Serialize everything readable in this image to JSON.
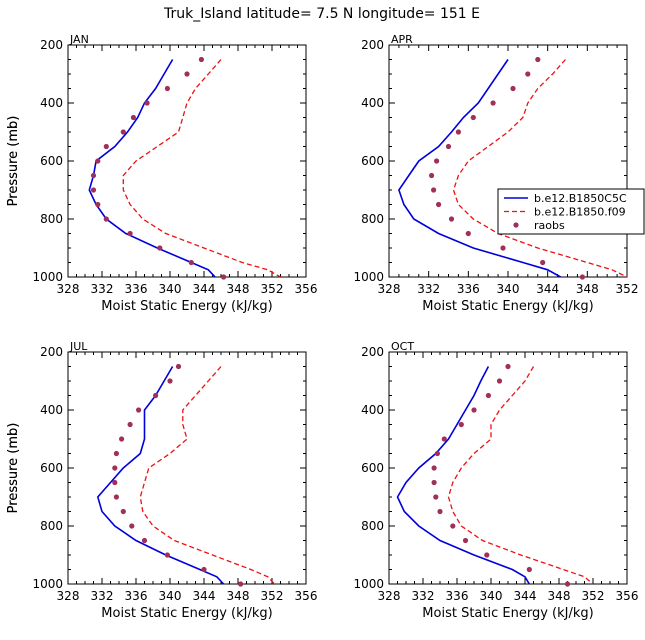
{
  "page": {
    "title": "Truk_Island   latitude= 7.5 N longitude= 151 E"
  },
  "colors": {
    "model_c5": "#0000dd",
    "model_f09": "#ee1111",
    "raobs": "#a0305a",
    "axis": "#000000"
  },
  "legend": {
    "items": [
      {
        "label": "b.e12.B1850C5C"
      },
      {
        "label": "b.e12.B1850.f09"
      },
      {
        "label": "raobs"
      }
    ]
  },
  "chart_data": [
    {
      "type": "line",
      "panel": "JAN",
      "xlabel": "Moist Static Energy (kJ/kg)",
      "ylabel": "Pressure (mb)",
      "xlim": [
        328,
        356
      ],
      "ylim": [
        200,
        1000
      ],
      "y_inverted": true,
      "xticks": [
        "328",
        "332",
        "336",
        "340",
        "344",
        "348",
        "352",
        "356"
      ],
      "yticks": [
        "200",
        "400",
        "600",
        "800",
        "1000"
      ],
      "pressure": [
        250,
        300,
        350,
        400,
        450,
        500,
        550,
        600,
        650,
        700,
        750,
        800,
        850,
        900,
        950,
        975,
        1000
      ],
      "series": [
        {
          "name": "b.e12.B1850C5C",
          "style": "solid",
          "values": [
            340.3,
            339.3,
            338.3,
            337.0,
            336.2,
            335.0,
            333.5,
            331.3,
            331.0,
            330.5,
            331.3,
            332.5,
            334.8,
            338.5,
            342.5,
            344.5,
            345.3
          ]
        },
        {
          "name": "b.e12.B1850.f09",
          "style": "dashed",
          "values": [
            346.0,
            344.5,
            343.0,
            342.0,
            341.5,
            341.0,
            338.5,
            336.0,
            334.5,
            334.5,
            335.3,
            336.8,
            339.5,
            344.0,
            348.5,
            351.5,
            353.0
          ]
        }
      ],
      "points": {
        "name": "raobs",
        "pressure": [
          250,
          300,
          350,
          400,
          450,
          500,
          550,
          600,
          650,
          700,
          750,
          800,
          850,
          900,
          950,
          1000
        ],
        "values": [
          343.7,
          342.0,
          339.7,
          337.3,
          335.7,
          334.5,
          332.5,
          331.5,
          331.0,
          331.0,
          331.5,
          332.5,
          335.3,
          338.8,
          342.5,
          346.3
        ]
      }
    },
    {
      "type": "line",
      "panel": "APR",
      "xlabel": "Moist Static Energy (kJ/kg)",
      "ylabel": "Pressure (mb)",
      "xlim": [
        328,
        352
      ],
      "ylim": [
        200,
        1000
      ],
      "y_inverted": true,
      "xticks": [
        "328",
        "332",
        "336",
        "340",
        "344",
        "348",
        "352"
      ],
      "yticks": [
        "200",
        "400",
        "600",
        "800",
        "1000"
      ],
      "pressure": [
        250,
        300,
        350,
        400,
        450,
        500,
        550,
        600,
        650,
        700,
        750,
        800,
        850,
        900,
        950,
        975,
        1000
      ],
      "series": [
        {
          "name": "b.e12.B1850C5C",
          "style": "solid",
          "values": [
            340.0,
            339.0,
            338.0,
            337.0,
            335.5,
            334.3,
            333.0,
            331.0,
            330.0,
            329.0,
            329.5,
            330.5,
            333.0,
            336.5,
            341.5,
            344.0,
            345.3
          ]
        },
        {
          "name": "b.e12.B1850.f09",
          "style": "dashed",
          "values": [
            345.8,
            344.5,
            343.0,
            342.0,
            341.5,
            340.0,
            338.0,
            336.0,
            335.0,
            334.5,
            335.0,
            336.5,
            339.0,
            343.0,
            348.0,
            350.5,
            352.0
          ]
        }
      ],
      "points": {
        "name": "raobs",
        "pressure": [
          250,
          300,
          350,
          400,
          450,
          500,
          550,
          600,
          650,
          700,
          750,
          800,
          850,
          900,
          950,
          1000
        ],
        "values": [
          343.0,
          342.0,
          340.5,
          338.5,
          336.5,
          335.0,
          334.0,
          332.8,
          332.3,
          332.5,
          333.0,
          334.3,
          336.0,
          339.5,
          343.5,
          347.5
        ]
      }
    },
    {
      "type": "line",
      "panel": "JUL",
      "xlabel": "Moist Static Energy (kJ/kg)",
      "ylabel": "Pressure (mb)",
      "xlim": [
        328,
        356
      ],
      "ylim": [
        200,
        1000
      ],
      "y_inverted": true,
      "xticks": [
        "328",
        "332",
        "336",
        "340",
        "344",
        "348",
        "352",
        "356"
      ],
      "yticks": [
        "200",
        "400",
        "600",
        "800",
        "1000"
      ],
      "pressure": [
        250,
        300,
        350,
        400,
        450,
        500,
        550,
        600,
        650,
        700,
        750,
        800,
        850,
        900,
        950,
        975,
        1000
      ],
      "series": [
        {
          "name": "b.e12.B1850C5C",
          "style": "solid",
          "values": [
            340.3,
            339.3,
            338.3,
            337.0,
            337.0,
            337.0,
            336.5,
            334.5,
            333.0,
            331.5,
            332.0,
            333.5,
            336.0,
            339.5,
            343.5,
            345.5,
            346.3
          ]
        },
        {
          "name": "b.e12.B1850.f09",
          "style": "dashed",
          "values": [
            346.0,
            344.5,
            343.0,
            341.5,
            341.5,
            342.0,
            340.0,
            337.5,
            337.0,
            336.5,
            336.8,
            338.0,
            340.5,
            345.0,
            349.5,
            351.5,
            352.3
          ]
        }
      ],
      "points": {
        "name": "raobs",
        "pressure": [
          250,
          300,
          350,
          400,
          450,
          500,
          550,
          600,
          650,
          700,
          750,
          800,
          850,
          900,
          950,
          1000
        ],
        "values": [
          341.0,
          340.0,
          338.3,
          336.3,
          335.3,
          334.3,
          333.7,
          333.5,
          333.5,
          333.7,
          334.5,
          335.5,
          337.0,
          339.7,
          344.0,
          348.3
        ]
      }
    },
    {
      "type": "line",
      "panel": "OCT",
      "xlabel": "Moist Static Energy (kJ/kg)",
      "ylabel": "Pressure (mb)",
      "xlim": [
        328,
        356
      ],
      "ylim": [
        200,
        1000
      ],
      "y_inverted": true,
      "xticks": [
        "328",
        "332",
        "336",
        "340",
        "344",
        "348",
        "352",
        "356"
      ],
      "yticks": [
        "200",
        "400",
        "600",
        "800",
        "1000"
      ],
      "pressure": [
        250,
        300,
        350,
        400,
        450,
        500,
        550,
        600,
        650,
        700,
        750,
        800,
        850,
        900,
        950,
        975,
        1000
      ],
      "series": [
        {
          "name": "b.e12.B1850C5C",
          "style": "solid",
          "values": [
            339.7,
            338.8,
            338.0,
            337.0,
            336.0,
            335.0,
            333.5,
            331.5,
            330.0,
            329.0,
            329.8,
            331.5,
            334.0,
            338.0,
            342.5,
            344.0,
            344.5
          ]
        },
        {
          "name": "b.e12.B1850.f09",
          "style": "dashed",
          "values": [
            345.0,
            344.0,
            342.5,
            341.0,
            340.0,
            340.0,
            338.0,
            336.5,
            335.5,
            335.0,
            335.5,
            336.5,
            339.0,
            343.5,
            348.5,
            351.0,
            352.0
          ]
        }
      ],
      "points": {
        "name": "raobs",
        "pressure": [
          250,
          300,
          350,
          400,
          450,
          500,
          550,
          600,
          650,
          700,
          750,
          800,
          850,
          900,
          950,
          1000
        ],
        "values": [
          342.0,
          341.0,
          339.7,
          338.0,
          336.5,
          334.5,
          333.7,
          333.3,
          333.3,
          333.5,
          334.0,
          335.5,
          337.0,
          339.5,
          344.5,
          349.0
        ]
      }
    }
  ]
}
